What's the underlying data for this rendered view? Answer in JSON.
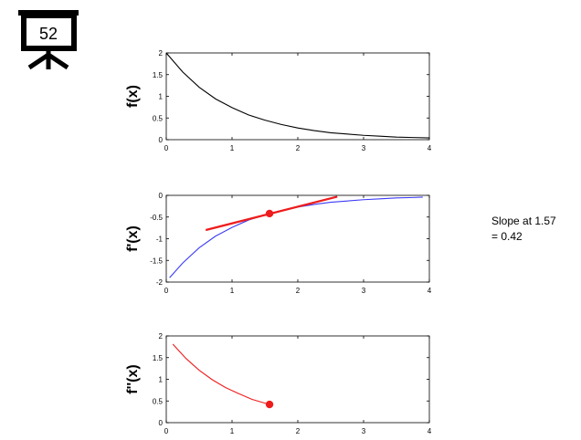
{
  "slide_icon": {
    "name": "projector-screen-icon",
    "number": "52"
  },
  "annotation": {
    "line1": "Slope at 1.57",
    "line2": "= 0.42"
  },
  "colors": {
    "f": "#000000",
    "fprime": "#3b3bf5",
    "fsecond": "#ee1c1c",
    "marker": "#ee1c1c"
  },
  "chart_data": [
    {
      "type": "line",
      "ylabel": "f(x)",
      "xlim": [
        0,
        4
      ],
      "ylim": [
        0,
        2
      ],
      "xticks": [
        "0",
        "1",
        "2",
        "3",
        "4"
      ],
      "yticks": [
        "0",
        "0.5",
        "1",
        "1.5",
        "2"
      ],
      "series": [
        {
          "x": [
            0,
            0.25,
            0.5,
            0.75,
            1,
            1.25,
            1.5,
            1.75,
            2,
            2.25,
            2.5,
            2.75,
            3,
            3.25,
            3.5,
            3.75,
            4
          ],
          "y": [
            2.0,
            1.56,
            1.21,
            0.94,
            0.74,
            0.57,
            0.45,
            0.35,
            0.27,
            0.21,
            0.16,
            0.13,
            0.1,
            0.08,
            0.06,
            0.05,
            0.04
          ]
        }
      ]
    },
    {
      "type": "line",
      "ylabel": "f'(x)",
      "xlim": [
        0,
        4
      ],
      "ylim": [
        -2,
        0
      ],
      "xticks": [
        "0",
        "1",
        "2",
        "3",
        "4"
      ],
      "yticks": [
        "-2",
        "-1.5",
        "-1",
        "-0.5",
        "0"
      ],
      "series": [
        {
          "x": [
            0.05,
            0.25,
            0.5,
            0.75,
            1,
            1.25,
            1.5,
            1.75,
            2,
            2.25,
            2.5,
            2.75,
            3,
            3.25,
            3.5,
            3.75,
            3.9
          ],
          "y": [
            -1.9,
            -1.56,
            -1.21,
            -0.94,
            -0.74,
            -0.57,
            -0.45,
            -0.35,
            -0.27,
            -0.21,
            -0.16,
            -0.13,
            -0.1,
            -0.08,
            -0.06,
            -0.05,
            -0.04
          ]
        }
      ],
      "tangent": {
        "x": [
          0.6,
          2.6
        ],
        "y": [
          -0.8,
          -0.03
        ]
      },
      "point": {
        "x": 1.57,
        "y": -0.42
      }
    },
    {
      "type": "line",
      "ylabel": "f''(x)",
      "xlim": [
        0,
        4
      ],
      "ylim": [
        0,
        2
      ],
      "xticks": [
        "0",
        "1",
        "2",
        "3",
        "4"
      ],
      "yticks": [
        "0",
        "0.5",
        "1",
        "1.5",
        "2"
      ],
      "series": [
        {
          "x": [
            0.1,
            0.3,
            0.5,
            0.7,
            0.9,
            1.1,
            1.3,
            1.5,
            1.57
          ],
          "y": [
            1.81,
            1.48,
            1.21,
            0.99,
            0.81,
            0.67,
            0.54,
            0.45,
            0.42
          ]
        }
      ],
      "point": {
        "x": 1.57,
        "y": 0.42
      }
    }
  ]
}
